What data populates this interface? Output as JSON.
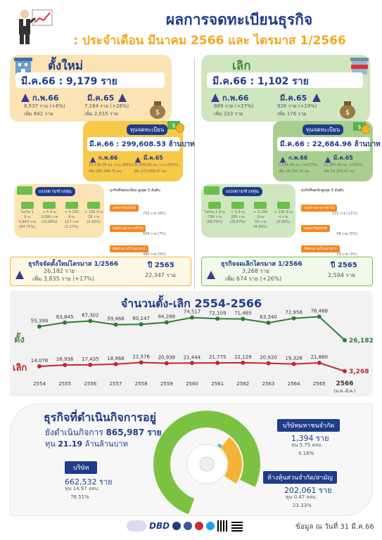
{
  "header": {
    "title_line1": "ผลการจดทะเบียนธุรกิจ",
    "title_line2": ": ประจำเดือน มีนาคม 2566 และ ไตรมาส 1/2566"
  },
  "new_reg": {
    "title": "ตั้งใหม่",
    "month_total": "มี.ค.66 : 9,179 ราย",
    "feb_label": "ก.พ.66",
    "feb_line1": "8,537 ราย (+8%)",
    "feb_line2": "เพิ่ม 642 ราย",
    "mar65_label": "มี.ค.65",
    "mar65_line1": "7,164 ราย (+28%)",
    "mar65_line2": "เพิ่ม 2,015 ราย",
    "capital_chip": "ทุนจดทะเบียน",
    "capital_total": "มี.ค.66 : 299,608.53 ล้านบาท",
    "cap_feb_label": "ก.พ.66",
    "cap_feb_line1": "19,139.78 ลบ. (+1,465%)",
    "cap_feb_line2": "เพิ่ม 280,468.75 ลบ.",
    "cap_mar65_label": "มี.ค.65",
    "cap_mar65_line1": "25,939.56 ลบ. (+1,055%)",
    "cap_mar65_line2": "เพิ่ม 273,668.97 ลบ.",
    "range_chip": "แบ่งตามช่วงทุน",
    "ranges": [
      {
        "label": "ไม่เกิน 1 ล้าน",
        "count": "5,943 ราย",
        "pct": "(64.75%)"
      },
      {
        "label": "< 5 ล้าน",
        "count": "3,090 ราย",
        "pct": "(33.66%)"
      },
      {
        "label": "> 5-100 ล้าน",
        "count": "117 ราย",
        "pct": "(1.27%)"
      },
      {
        "label": "> 100 ล้าน",
        "count": "29 ราย",
        "pct": "(0.32%)"
      }
    ],
    "top3_title": "ธุรกิจที่จดทะเบียน สูงสุด 3 อันดับ",
    "top3": [
      {
        "name": "อสังหาริมทรัพย์",
        "value": "752 ราย (8%)"
      },
      {
        "name": "ก่อสร้างอาคารทั่วไป",
        "value": "609 ราย (7%)"
      },
      {
        "name": "ภัตตาคาร/ร้านอาหาร",
        "value": "440 ราย (5%)"
      }
    ],
    "quarter_title": "ธุรกิจจัดตั้งใหม่ไตรมาส 1/2566",
    "quarter_line1": "26,182 ราย",
    "quarter_line2": "เพิ่ม 3,835 ราย (+17%)",
    "year_label": "ปี 2565",
    "year_value": "22,347 ราย"
  },
  "closed": {
    "title": "เลิก",
    "month_total": "มี.ค.66 : 1,102 ราย",
    "feb_label": "ก.พ.66",
    "feb_line1": "869 ราย (+27%)",
    "feb_line2": "เพิ่ม 233 ราย",
    "mar65_label": "มี.ค.65",
    "mar65_line1": "926 ราย (+19%)",
    "mar65_line2": "เพิ่ม 176 ราย",
    "capital_chip": "ทุนจดทะเบียน",
    "capital_total": "มี.ค.66 : 22,684.96 ล้านบาท",
    "cap_feb_label": "ก.พ.66",
    "cap_feb_line1": "2,939.46 ลบ. (+672%)",
    "cap_feb_line2": "เพิ่ม 19,745.50 ลบ.",
    "cap_mar65_label": "มี.ค.65",
    "cap_mar65_line1": "12,380.99 ลบ. (+83%)",
    "cap_mar65_line2": "เพิ่ม 10,303.97 ลบ.",
    "range_chip": "แบ่งตามช่วงทุน",
    "ranges": [
      {
        "label": "ไม่เกิน 1 ล้าน",
        "count": "758 ราย",
        "pct": "(68.78%)"
      },
      {
        "label": "< 5 ล้าน",
        "count": "285 ราย",
        "pct": "(25.87%)"
      },
      {
        "label": "> 5-100 ล้าน",
        "count": "55 ราย",
        "pct": "(4.99%)"
      },
      {
        "label": "> 100 ล้าน",
        "count": "4 ราย",
        "pct": "(0.36%)"
      }
    ],
    "top3_title": "ธุรกิจที่จดเลิกสูงสุด 3 อันดับ",
    "top3": [
      {
        "name": "ก่อสร้างอาคารทั่วไป",
        "value": "122 ราย (11%)"
      },
      {
        "name": "อสังหาริมทรัพย์",
        "value": "58 ราย (5%)"
      },
      {
        "name": "ภัตตาคาร/ร้านอาหาร",
        "value": "29 ราย (3%)"
      }
    ],
    "quarter_title": "ธุรกิจจดเลิกไตรมาส 1/2566",
    "quarter_line1": "3,268 ราย",
    "quarter_line2": "เพิ่ม 674 ราย (+26%)",
    "year_label": "ปี 2565",
    "year_value": "2,594 ราย"
  },
  "trend": {
    "title": "จำนวนตั้ง-เลิก 2554-2566",
    "row_label_new": "ตั้ง",
    "row_label_closed": "เลิก",
    "last_sub": "(ม.ค.-มี.ค.)"
  },
  "chart_data": {
    "type": "line",
    "title": "จำนวนตั้ง-เลิก 2554-2566",
    "x": [
      "2554",
      "2555",
      "2556",
      "2557",
      "2558",
      "2559",
      "2560",
      "2561",
      "2562",
      "2563",
      "2564",
      "2565",
      "2566"
    ],
    "series": [
      {
        "name": "ตั้ง",
        "color": "#2e7d32",
        "values": [
          55399,
          63845,
          67302,
          59468,
          60147,
          64288,
          74517,
          72109,
          71485,
          63340,
          72958,
          76488,
          26182
        ]
      },
      {
        "name": "เลิก",
        "color": "#c0282d",
        "values": [
          14078,
          16936,
          17435,
          18968,
          22576,
          20938,
          21444,
          21775,
          22129,
          20920,
          19326,
          21880,
          3268
        ]
      }
    ],
    "labels_new": [
      "55,399",
      "63,845",
      "67,302",
      "59,468",
      "60,147",
      "64,288",
      "74,517",
      "72,109",
      "71,485",
      "63,340",
      "72,958",
      "76,488",
      "26,182"
    ],
    "labels_closed": [
      "14,078",
      "16,936",
      "17,435",
      "18,968",
      "22,576",
      "20,938",
      "21,444",
      "21,775",
      "22,129",
      "20,920",
      "19,326",
      "21,880",
      "3,268"
    ]
  },
  "active": {
    "title": "ธุรกิจที่ดำเนินกิจการอยู่",
    "line1_prefix": "ยังดำเนินกิจการ",
    "line1_value": "865,987 ราย",
    "line2_prefix": "ทุน",
    "line2_value": "21.19",
    "line2_suffix": "ล้านล้านบาท",
    "company_chip": "บริษัท",
    "company_count": "662,532 ราย",
    "company_capital": "ทุน 14.97 ลลบ.",
    "company_pct": "76.51%",
    "public_chip": "บริษัทมหาชนจำกัด",
    "public_count": "1,394 ราย",
    "public_capital": "ทุน 5.75 ลลบ.",
    "public_pct": "0.16%",
    "partner_chip": "ห้างหุ้นส่วนจำกัด/สามัญ",
    "partner_count": "202,061 ราย",
    "partner_capital": "ทุน 0.47 ลลบ.",
    "partner_pct": "23.33%",
    "colors": {
      "company": "#7cc242",
      "partner": "#f5b335",
      "public": "#4fb6d8"
    },
    "shares": {
      "company": 76.51,
      "partner": 23.33,
      "public": 0.16
    }
  },
  "footer": {
    "note": "ข้อมูล ณ วันที่ 31 มี.ค.66",
    "logo_text": "DBD"
  },
  "colors": {
    "navy": "#1f3c8a",
    "orange": "#f5a623",
    "new_panel": "#fbe3b4",
    "new_capital": "#f7c948",
    "closed_panel": "#cfe6bf",
    "closed_capital": "#a9cf8e"
  }
}
